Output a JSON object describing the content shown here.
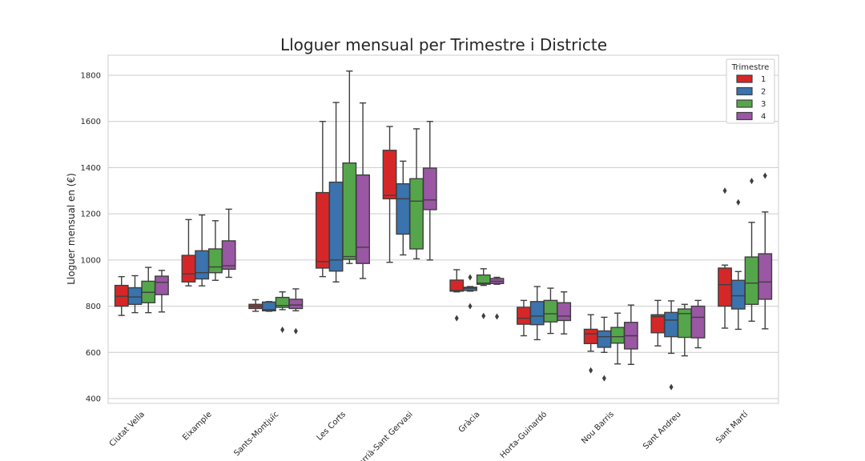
{
  "chart_data": {
    "type": "box",
    "title": "Lloguer mensual per Trimestre i Districte",
    "xlabel": "",
    "ylabel": "Lloguer mensual en (€)",
    "ylim": [
      380,
      1880
    ],
    "yticks": [
      400,
      600,
      800,
      1000,
      1200,
      1400,
      1600,
      1800
    ],
    "grid": true,
    "legend": {
      "title": "Trimestre",
      "position": "top-right"
    },
    "categories": [
      "Ciutat Vella",
      "Eixample",
      "Sants-Montjuïc",
      "Les Corts",
      "Sarrià-Sant Gervasi",
      "Gràcia",
      "Horta-Guinardó",
      "Nou Barris",
      "Sant Andreu",
      "Sant Martí"
    ],
    "series": [
      {
        "name": "1",
        "color": "#d62728",
        "boxes": [
          {
            "whislo": 760,
            "q1": 800,
            "med": 843,
            "q3": 890,
            "whishi": 928,
            "fliers": []
          },
          {
            "whislo": 888,
            "q1": 905,
            "med": 940,
            "q3": 1020,
            "whishi": 1175,
            "fliers": []
          },
          {
            "whislo": 778,
            "q1": 790,
            "med": 800,
            "q3": 808,
            "whishi": 828,
            "fliers": []
          },
          {
            "whislo": 928,
            "q1": 965,
            "med": 993,
            "q3": 1292,
            "whishi": 1600,
            "fliers": []
          },
          {
            "whislo": 990,
            "q1": 1265,
            "med": 1280,
            "q3": 1475,
            "whishi": 1578,
            "fliers": []
          },
          {
            "whislo": 862,
            "q1": 865,
            "med": 868,
            "q3": 913,
            "whishi": 958,
            "fliers": [
              748
            ]
          },
          {
            "whislo": 672,
            "q1": 722,
            "med": 748,
            "q3": 795,
            "whishi": 825,
            "fliers": []
          },
          {
            "whislo": 605,
            "q1": 638,
            "med": 680,
            "q3": 700,
            "whishi": 763,
            "fliers": [
              522
            ]
          },
          {
            "whislo": 628,
            "q1": 685,
            "med": 755,
            "q3": 763,
            "whishi": 825,
            "fliers": []
          },
          {
            "whislo": 705,
            "q1": 800,
            "med": 893,
            "q3": 965,
            "whishi": 978,
            "fliers": [
              1300
            ]
          }
        ]
      },
      {
        "name": "2",
        "color": "#3a73ad",
        "boxes": [
          {
            "whislo": 772,
            "q1": 808,
            "med": 840,
            "q3": 880,
            "whishi": 932,
            "fliers": []
          },
          {
            "whislo": 888,
            "q1": 918,
            "med": 945,
            "q3": 1040,
            "whishi": 1195,
            "fliers": []
          },
          {
            "whislo": 778,
            "q1": 780,
            "med": 785,
            "q3": 818,
            "whishi": 820,
            "fliers": []
          },
          {
            "whislo": 905,
            "q1": 952,
            "med": 1000,
            "q3": 1337,
            "whishi": 1682,
            "fliers": []
          },
          {
            "whislo": 1022,
            "q1": 1112,
            "med": 1265,
            "q3": 1330,
            "whishi": 1428,
            "fliers": []
          },
          {
            "whislo": 865,
            "q1": 868,
            "med": 878,
            "q3": 882,
            "whishi": 885,
            "fliers": [
              925,
              800
            ]
          },
          {
            "whislo": 655,
            "q1": 720,
            "med": 757,
            "q3": 820,
            "whishi": 885,
            "fliers": []
          },
          {
            "whislo": 600,
            "q1": 622,
            "med": 668,
            "q3": 693,
            "whishi": 752,
            "fliers": [
              488
            ]
          },
          {
            "whislo": 596,
            "q1": 668,
            "med": 740,
            "q3": 773,
            "whishi": 823,
            "fliers": [
              450
            ]
          },
          {
            "whislo": 700,
            "q1": 788,
            "med": 845,
            "q3": 912,
            "whishi": 950,
            "fliers": [
              1250
            ]
          }
        ]
      },
      {
        "name": "3",
        "color": "#55a64a",
        "boxes": [
          {
            "whislo": 772,
            "q1": 815,
            "med": 860,
            "q3": 908,
            "whishi": 968,
            "fliers": []
          },
          {
            "whislo": 912,
            "q1": 945,
            "med": 970,
            "q3": 1048,
            "whishi": 1170,
            "fliers": []
          },
          {
            "whislo": 785,
            "q1": 795,
            "med": 803,
            "q3": 838,
            "whishi": 862,
            "fliers": [
              698
            ]
          },
          {
            "whislo": 985,
            "q1": 1003,
            "med": 1015,
            "q3": 1420,
            "whishi": 1818,
            "fliers": []
          },
          {
            "whislo": 1005,
            "q1": 1048,
            "med": 1255,
            "q3": 1352,
            "whishi": 1568,
            "fliers": []
          },
          {
            "whislo": 890,
            "q1": 895,
            "med": 900,
            "q3": 935,
            "whishi": 962,
            "fliers": [
              758
            ]
          },
          {
            "whislo": 682,
            "q1": 732,
            "med": 767,
            "q3": 825,
            "whishi": 878,
            "fliers": []
          },
          {
            "whislo": 550,
            "q1": 640,
            "med": 668,
            "q3": 708,
            "whishi": 770,
            "fliers": []
          },
          {
            "whislo": 585,
            "q1": 665,
            "med": 768,
            "q3": 788,
            "whishi": 808,
            "fliers": []
          },
          {
            "whislo": 735,
            "q1": 808,
            "med": 900,
            "q3": 1013,
            "whishi": 1163,
            "fliers": [
              1342
            ]
          }
        ]
      },
      {
        "name": "4",
        "color": "#9a57a3",
        "boxes": [
          {
            "whislo": 775,
            "q1": 850,
            "med": 903,
            "q3": 930,
            "whishi": 955,
            "fliers": []
          },
          {
            "whislo": 925,
            "q1": 960,
            "med": 975,
            "q3": 1083,
            "whishi": 1220,
            "fliers": []
          },
          {
            "whislo": 780,
            "q1": 790,
            "med": 805,
            "q3": 830,
            "whishi": 875,
            "fliers": [
              692
            ]
          },
          {
            "whislo": 920,
            "q1": 985,
            "med": 1055,
            "q3": 1368,
            "whishi": 1680,
            "fliers": []
          },
          {
            "whislo": 1000,
            "q1": 1218,
            "med": 1260,
            "q3": 1398,
            "whishi": 1600,
            "fliers": []
          },
          {
            "whislo": 895,
            "q1": 898,
            "med": 908,
            "q3": 920,
            "whishi": 925,
            "fliers": [
              755
            ]
          },
          {
            "whislo": 680,
            "q1": 738,
            "med": 757,
            "q3": 815,
            "whishi": 862,
            "fliers": []
          },
          {
            "whislo": 548,
            "q1": 615,
            "med": 672,
            "q3": 730,
            "whishi": 805,
            "fliers": []
          },
          {
            "whislo": 620,
            "q1": 663,
            "med": 752,
            "q3": 800,
            "whishi": 825,
            "fliers": []
          },
          {
            "whislo": 702,
            "q1": 830,
            "med": 905,
            "q3": 1027,
            "whishi": 1208,
            "fliers": [
              1365
            ]
          }
        ]
      }
    ]
  }
}
